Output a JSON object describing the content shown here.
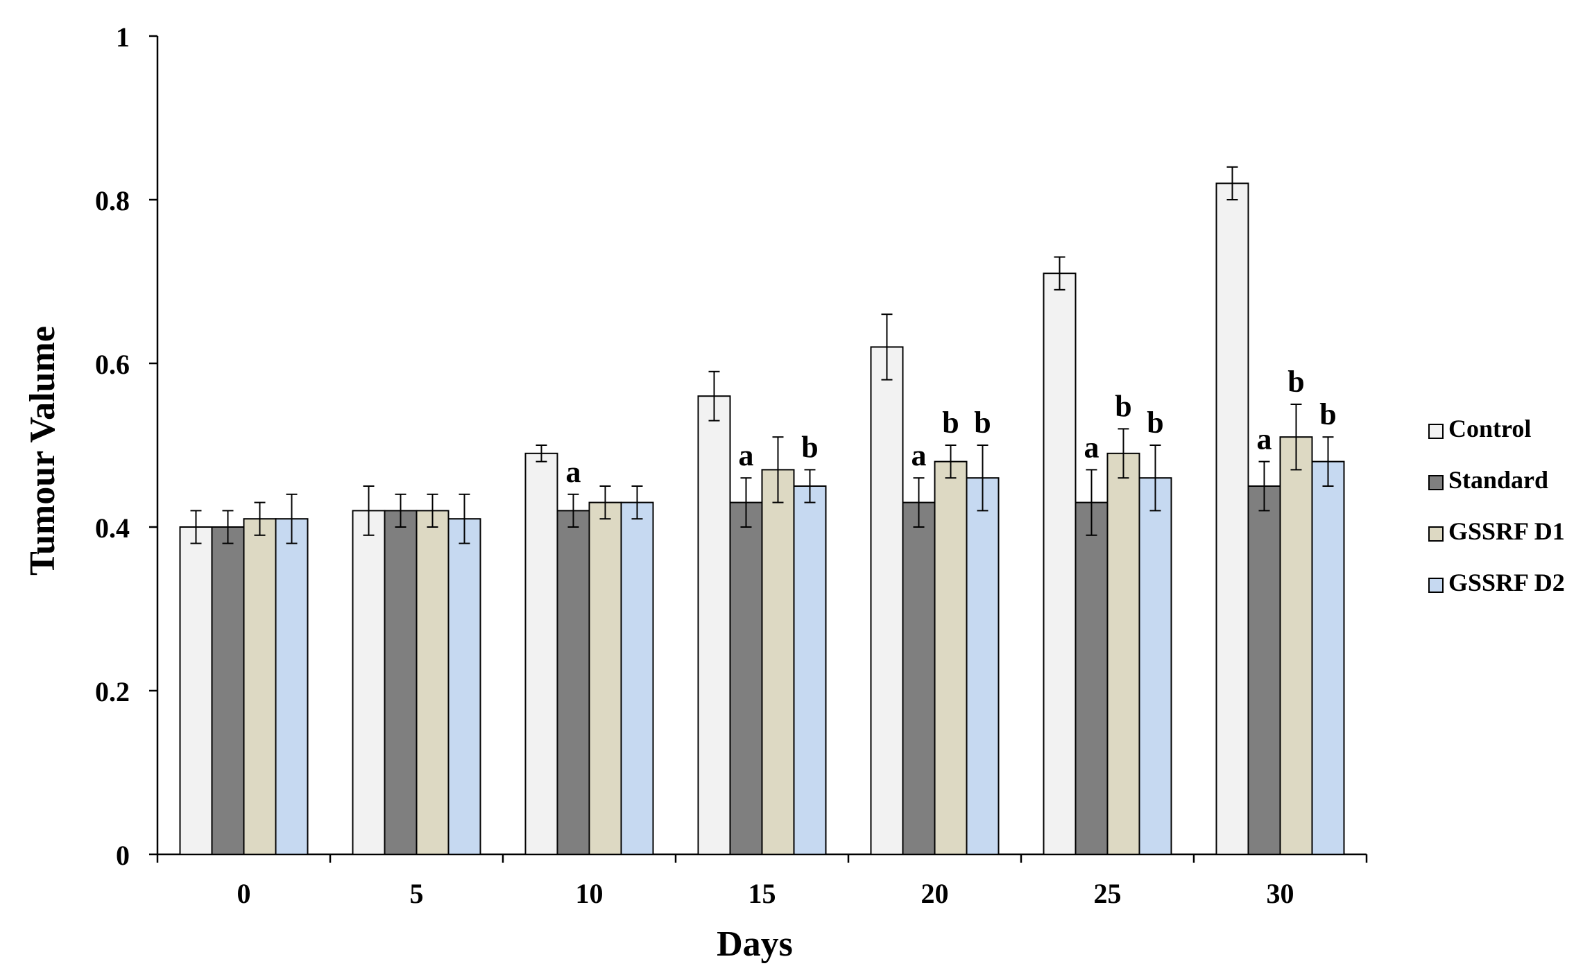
{
  "chart_data": {
    "type": "bar",
    "title": "",
    "xlabel": "Days",
    "ylabel": "Tumour Valume",
    "categories": [
      "0",
      "5",
      "10",
      "15",
      "20",
      "25",
      "30"
    ],
    "ylim": [
      0,
      1
    ],
    "yticks": [
      "0",
      "0.2",
      "0.4",
      "0.6",
      "0.8",
      "1"
    ],
    "ytick_values": [
      0,
      0.2,
      0.4,
      0.6,
      0.8,
      1
    ],
    "legend_position": "right",
    "series": [
      {
        "name": "Control",
        "color": "#f2f2f2",
        "values": [
          0.4,
          0.42,
          0.49,
          0.56,
          0.62,
          0.71,
          0.82
        ],
        "errors": [
          0.02,
          0.03,
          0.01,
          0.03,
          0.04,
          0.02,
          0.02
        ],
        "annotations": [
          "",
          "",
          "",
          "",
          "",
          "",
          ""
        ]
      },
      {
        "name": "Standard",
        "color": "#7f7f7f",
        "values": [
          0.4,
          0.42,
          0.42,
          0.43,
          0.43,
          0.43,
          0.45
        ],
        "errors": [
          0.02,
          0.02,
          0.02,
          0.03,
          0.03,
          0.04,
          0.03
        ],
        "annotations": [
          "",
          "",
          "a",
          "a",
          "a",
          "a",
          "a"
        ]
      },
      {
        "name": "GSSRF D1",
        "color": "#ddd9c3",
        "values": [
          0.41,
          0.42,
          0.43,
          0.47,
          0.48,
          0.49,
          0.51
        ],
        "errors": [
          0.02,
          0.02,
          0.02,
          0.04,
          0.02,
          0.03,
          0.04
        ],
        "annotations": [
          "",
          "",
          "",
          "",
          "b",
          "b",
          "b"
        ]
      },
      {
        "name": "GSSRF D2",
        "color": "#c6d9f1",
        "values": [
          0.41,
          0.41,
          0.43,
          0.45,
          0.46,
          0.46,
          0.48
        ],
        "errors": [
          0.03,
          0.03,
          0.02,
          0.02,
          0.04,
          0.04,
          0.03
        ],
        "annotations": [
          "",
          "",
          "",
          "b",
          "b",
          "b",
          "b"
        ]
      }
    ]
  }
}
